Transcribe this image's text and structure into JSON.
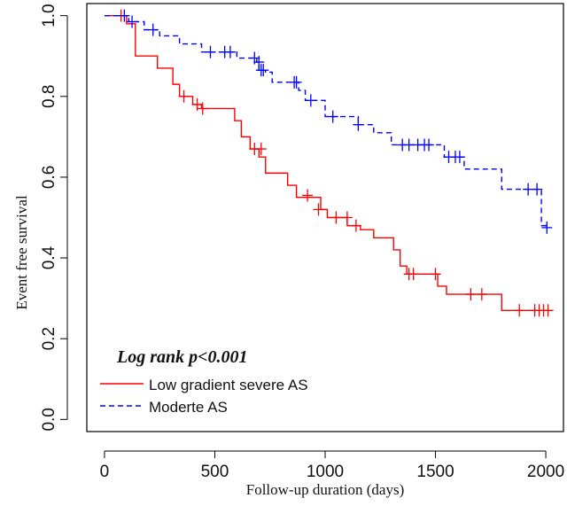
{
  "chart_data": {
    "type": "line",
    "title": "",
    "xlabel": "Follow-up duration (days)",
    "ylabel": "Event free survival",
    "xlim": [
      -80,
      2080
    ],
    "ylim": [
      -0.03,
      1.03
    ],
    "x_ticks": [
      0,
      500,
      1000,
      1500,
      2000
    ],
    "y_ticks": [
      0.0,
      0.2,
      0.4,
      0.6,
      0.8,
      1.0
    ],
    "x_tick_labels": [
      "0",
      "500",
      "1000",
      "1500",
      "2000"
    ],
    "y_tick_labels": [
      "0.0",
      "0.2",
      "0.4",
      "0.6",
      "0.8",
      "1.0"
    ],
    "annotation": "Log rank p<0.001",
    "legend_position": "bottom-left",
    "series": [
      {
        "name": "Low gradient severe AS",
        "color": "#ff0000",
        "dash": "solid",
        "step_points": [
          [
            0,
            1.0
          ],
          [
            100,
            0.98
          ],
          [
            140,
            0.9
          ],
          [
            240,
            0.87
          ],
          [
            310,
            0.83
          ],
          [
            340,
            0.8
          ],
          [
            400,
            0.78
          ],
          [
            440,
            0.77
          ],
          [
            590,
            0.74
          ],
          [
            620,
            0.7
          ],
          [
            660,
            0.67
          ],
          [
            700,
            0.65
          ],
          [
            730,
            0.61
          ],
          [
            830,
            0.58
          ],
          [
            870,
            0.55
          ],
          [
            980,
            0.52
          ],
          [
            1010,
            0.5
          ],
          [
            1100,
            0.48
          ],
          [
            1160,
            0.47
          ],
          [
            1220,
            0.45
          ],
          [
            1310,
            0.42
          ],
          [
            1340,
            0.38
          ],
          [
            1370,
            0.36
          ],
          [
            1510,
            0.33
          ],
          [
            1550,
            0.31
          ],
          [
            1800,
            0.27
          ],
          [
            2020,
            0.27
          ]
        ],
        "censor_points": [
          [
            75,
            1.0
          ],
          [
            360,
            0.8
          ],
          [
            420,
            0.78
          ],
          [
            445,
            0.77
          ],
          [
            680,
            0.67
          ],
          [
            710,
            0.67
          ],
          [
            920,
            0.555
          ],
          [
            970,
            0.52
          ],
          [
            1050,
            0.5
          ],
          [
            1100,
            0.5
          ],
          [
            1140,
            0.48
          ],
          [
            1380,
            0.36
          ],
          [
            1400,
            0.36
          ],
          [
            1500,
            0.36
          ],
          [
            1660,
            0.31
          ],
          [
            1710,
            0.31
          ],
          [
            1880,
            0.27
          ],
          [
            1950,
            0.27
          ],
          [
            1970,
            0.27
          ],
          [
            1990,
            0.27
          ],
          [
            2010,
            0.27
          ]
        ]
      },
      {
        "name": "Moderte AS",
        "color": "#0000ff",
        "dash": "dashed",
        "step_points": [
          [
            0,
            1.0
          ],
          [
            110,
            0.985
          ],
          [
            180,
            0.965
          ],
          [
            250,
            0.95
          ],
          [
            340,
            0.93
          ],
          [
            440,
            0.91
          ],
          [
            600,
            0.895
          ],
          [
            690,
            0.885
          ],
          [
            700,
            0.865
          ],
          [
            730,
            0.86
          ],
          [
            760,
            0.835
          ],
          [
            880,
            0.815
          ],
          [
            910,
            0.79
          ],
          [
            1000,
            0.75
          ],
          [
            1150,
            0.73
          ],
          [
            1220,
            0.71
          ],
          [
            1300,
            0.68
          ],
          [
            1540,
            0.65
          ],
          [
            1630,
            0.62
          ],
          [
            1800,
            0.57
          ],
          [
            1980,
            0.48
          ],
          [
            2000,
            0.475
          ]
        ],
        "censor_points": [
          [
            90,
            1.0
          ],
          [
            125,
            0.985
          ],
          [
            220,
            0.965
          ],
          [
            480,
            0.91
          ],
          [
            545,
            0.91
          ],
          [
            570,
            0.91
          ],
          [
            680,
            0.895
          ],
          [
            700,
            0.885
          ],
          [
            710,
            0.865
          ],
          [
            720,
            0.865
          ],
          [
            860,
            0.835
          ],
          [
            870,
            0.835
          ],
          [
            935,
            0.79
          ],
          [
            1035,
            0.75
          ],
          [
            1150,
            0.73
          ],
          [
            1350,
            0.68
          ],
          [
            1380,
            0.68
          ],
          [
            1420,
            0.68
          ],
          [
            1450,
            0.68
          ],
          [
            1470,
            0.68
          ],
          [
            1560,
            0.65
          ],
          [
            1590,
            0.65
          ],
          [
            1610,
            0.65
          ],
          [
            1920,
            0.57
          ],
          [
            1960,
            0.57
          ],
          [
            2005,
            0.475
          ]
        ]
      }
    ]
  }
}
